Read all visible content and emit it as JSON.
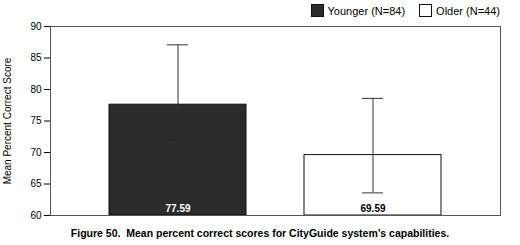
{
  "chart_data": {
    "type": "bar",
    "caption": "Figure 50.  Mean percent correct scores for CityGuide system’s capabilities.",
    "ylabel": "Mean Percent Correct Score",
    "categories": [
      "Younger (N=84)",
      "Older (N=44)"
    ],
    "values": [
      77.59,
      69.59
    ],
    "colors": [
      "#2b2b2b",
      "#ffffff"
    ],
    "error_upper": [
      9.5,
      9.0
    ],
    "error_lower": [
      6.0,
      6.0
    ],
    "ylim": [
      60,
      90
    ],
    "yticks": [
      60,
      65,
      70,
      75,
      80,
      85,
      90
    ],
    "data_labels": true,
    "legend": "upper right",
    "tick_labels": "y"
  }
}
